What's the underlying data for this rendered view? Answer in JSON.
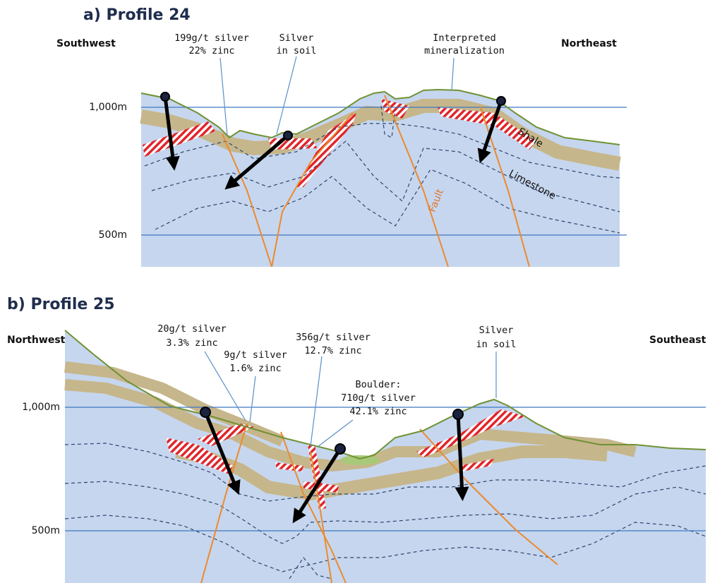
{
  "panels": [
    {
      "title": "a) Profile 24",
      "left_direction": "Southwest",
      "right_direction": "Northeast",
      "elevations": [
        "1,000m",
        "500m"
      ],
      "annotations": [
        [
          "199g/t silver",
          "22% zinc"
        ],
        [
          "Silver",
          "in soil"
        ],
        [
          "Interpreted",
          "mineralization"
        ]
      ],
      "units": [
        "Shale",
        "Limestone",
        "Fault"
      ]
    },
    {
      "title": "b) Profile 25",
      "left_direction": "Northwest",
      "right_direction": "Southeast",
      "elevations": [
        "1,000m",
        "500m"
      ],
      "annotations": [
        [
          "20g/t silver",
          "3.3% zinc"
        ],
        [
          "9g/t silver",
          "1.6% zinc"
        ],
        [
          "356g/t silver",
          "12.7% zinc"
        ],
        [
          "Boulder:",
          "710g/t silver",
          "42.1% zinc"
        ],
        [
          "Silver",
          "in soil"
        ]
      ]
    }
  ]
}
